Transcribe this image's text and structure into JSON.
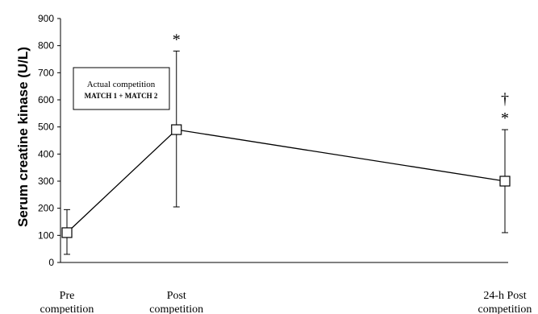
{
  "chart_data": {
    "type": "line",
    "ylabel": "Serum creatine kinase (U/L)",
    "ylim": [
      0,
      900
    ],
    "yticks": [
      0,
      100,
      200,
      300,
      400,
      500,
      600,
      700,
      800,
      900
    ],
    "categories": [
      [
        "Pre",
        "competition"
      ],
      [
        "Post",
        "competition"
      ],
      [
        "24-h Post",
        "competition"
      ]
    ],
    "x": [
      0,
      1,
      4
    ],
    "values": [
      110,
      490,
      300
    ],
    "error_upper": [
      195,
      780,
      490
    ],
    "error_lower": [
      30,
      205,
      110
    ],
    "annotations": [
      {
        "point": 1,
        "text": "*"
      },
      {
        "point": 2,
        "text": "†"
      },
      {
        "point": 2,
        "text": "*"
      }
    ],
    "box": {
      "line1": "Actual competition",
      "line2": "MATCH 1 + MATCH 2"
    },
    "marker": "square-open",
    "line_color": "#000000"
  }
}
